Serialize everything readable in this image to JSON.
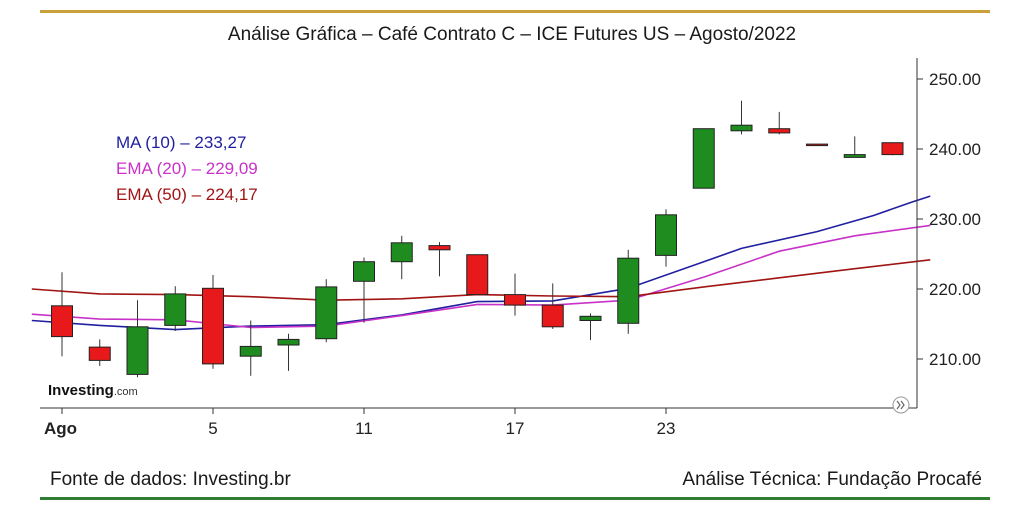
{
  "title": "Análise Gráfica – Café Contrato C – ICE Futures US – Agosto/2022",
  "footer": {
    "source": "Fonte de dados: Investing.br",
    "analysis": "Análise Técnica: Fundação Procafé"
  },
  "watermark": {
    "brand": "Investing",
    "suffix": ".com"
  },
  "legend": {
    "ma10": "MA (10) – 233,27",
    "ema20": "EMA (20) – 229,09",
    "ema50": "EMA (50) – 224,17"
  },
  "colors": {
    "up": "#1e8c1e",
    "down": "#e8191a",
    "ma10": "#1f1fa0",
    "ema20": "#c832c8",
    "ema50": "#a01414",
    "top_rule": "#c8a13a",
    "bottom_rule": "#2e7d32"
  },
  "chart_data": {
    "type": "candlestick",
    "title": "Análise Gráfica – Café Contrato C – ICE Futures US – Agosto/2022",
    "ylim": [
      203,
      253
    ],
    "yticks": [
      210.0,
      220.0,
      230.0,
      240.0,
      250.0
    ],
    "ytick_labels": [
      "210.00",
      "220.00",
      "230.00",
      "240.00",
      "250.00"
    ],
    "xtick_labels": [
      {
        "index": 0,
        "label": "Ago",
        "bold": true
      },
      {
        "index": 4,
        "label": "5",
        "bold": false
      },
      {
        "index": 8,
        "label": "11",
        "bold": false
      },
      {
        "index": 12,
        "label": "17",
        "bold": false
      },
      {
        "index": 16,
        "label": "23",
        "bold": false
      }
    ],
    "candles": [
      {
        "o": 217.6,
        "h": 222.4,
        "l": 210.4,
        "c": 213.2
      },
      {
        "o": 211.7,
        "h": 212.8,
        "l": 209.0,
        "c": 209.8
      },
      {
        "o": 207.8,
        "h": 218.4,
        "l": 207.4,
        "c": 214.6
      },
      {
        "o": 214.8,
        "h": 220.4,
        "l": 214.0,
        "c": 219.3
      },
      {
        "o": 220.1,
        "h": 222.0,
        "l": 208.6,
        "c": 209.3
      },
      {
        "o": 210.4,
        "h": 215.5,
        "l": 207.6,
        "c": 211.8
      },
      {
        "o": 212.0,
        "h": 213.6,
        "l": 208.3,
        "c": 212.8
      },
      {
        "o": 212.9,
        "h": 221.4,
        "l": 212.4,
        "c": 220.3
      },
      {
        "o": 221.1,
        "h": 224.5,
        "l": 215.2,
        "c": 223.9
      },
      {
        "o": 223.9,
        "h": 227.6,
        "l": 221.4,
        "c": 226.6
      },
      {
        "o": 226.2,
        "h": 226.7,
        "l": 221.8,
        "c": 225.6
      },
      {
        "o": 224.9,
        "h": 224.9,
        "l": 219.1,
        "c": 219.2
      },
      {
        "o": 219.2,
        "h": 222.2,
        "l": 216.2,
        "c": 217.7
      },
      {
        "o": 217.7,
        "h": 220.8,
        "l": 214.3,
        "c": 214.6
      },
      {
        "o": 215.5,
        "h": 216.5,
        "l": 212.7,
        "c": 216.1
      },
      {
        "o": 215.1,
        "h": 225.6,
        "l": 213.6,
        "c": 224.4
      },
      {
        "o": 224.8,
        "h": 231.4,
        "l": 223.2,
        "c": 230.6
      },
      {
        "o": 234.4,
        "h": 242.9,
        "l": 234.4,
        "c": 242.9
      },
      {
        "o": 242.6,
        "h": 246.9,
        "l": 242.1,
        "c": 243.4
      },
      {
        "o": 242.9,
        "h": 245.3,
        "l": 242.1,
        "c": 242.3
      },
      {
        "o": 240.7,
        "h": 240.7,
        "l": 240.6,
        "c": 240.6
      },
      {
        "o": 238.8,
        "h": 241.8,
        "l": 238.8,
        "c": 239.2
      },
      {
        "o": 240.9,
        "h": 240.9,
        "l": 239.1,
        "c": 239.2
      }
    ],
    "series": [
      {
        "name": "MA (10)",
        "color_key": "ma10",
        "values": [
          [
            -0.8,
            215.5
          ],
          [
            1,
            214.8
          ],
          [
            3,
            214.2
          ],
          [
            5,
            214.7
          ],
          [
            7,
            214.9
          ],
          [
            9,
            216.3
          ],
          [
            11,
            218.2
          ],
          [
            13,
            218.3
          ],
          [
            15,
            220.1
          ],
          [
            17,
            223.9
          ],
          [
            18,
            225.8
          ],
          [
            20,
            228.2
          ],
          [
            21.5,
            230.5
          ],
          [
            22.5,
            232.4
          ],
          [
            23,
            233.27
          ]
        ]
      },
      {
        "name": "EMA (20)",
        "color_key": "ema20",
        "values": [
          [
            -0.8,
            216.4
          ],
          [
            1,
            215.7
          ],
          [
            3,
            215.6
          ],
          [
            5,
            214.5
          ],
          [
            7,
            214.7
          ],
          [
            9,
            216.2
          ],
          [
            11,
            217.8
          ],
          [
            13,
            217.7
          ],
          [
            15,
            218.4
          ],
          [
            17,
            221.7
          ],
          [
            19,
            225.4
          ],
          [
            21,
            227.6
          ],
          [
            23,
            229.09
          ]
        ]
      },
      {
        "name": "EMA (50)",
        "color_key": "ema50",
        "values": [
          [
            -0.8,
            220.0
          ],
          [
            1,
            219.3
          ],
          [
            3,
            219.2
          ],
          [
            5,
            218.9
          ],
          [
            7,
            218.4
          ],
          [
            9,
            218.6
          ],
          [
            11,
            219.2
          ],
          [
            13,
            219.0
          ],
          [
            15,
            218.9
          ],
          [
            17,
            220.3
          ],
          [
            19,
            221.6
          ],
          [
            21,
            222.9
          ],
          [
            23,
            224.17
          ]
        ]
      }
    ]
  }
}
